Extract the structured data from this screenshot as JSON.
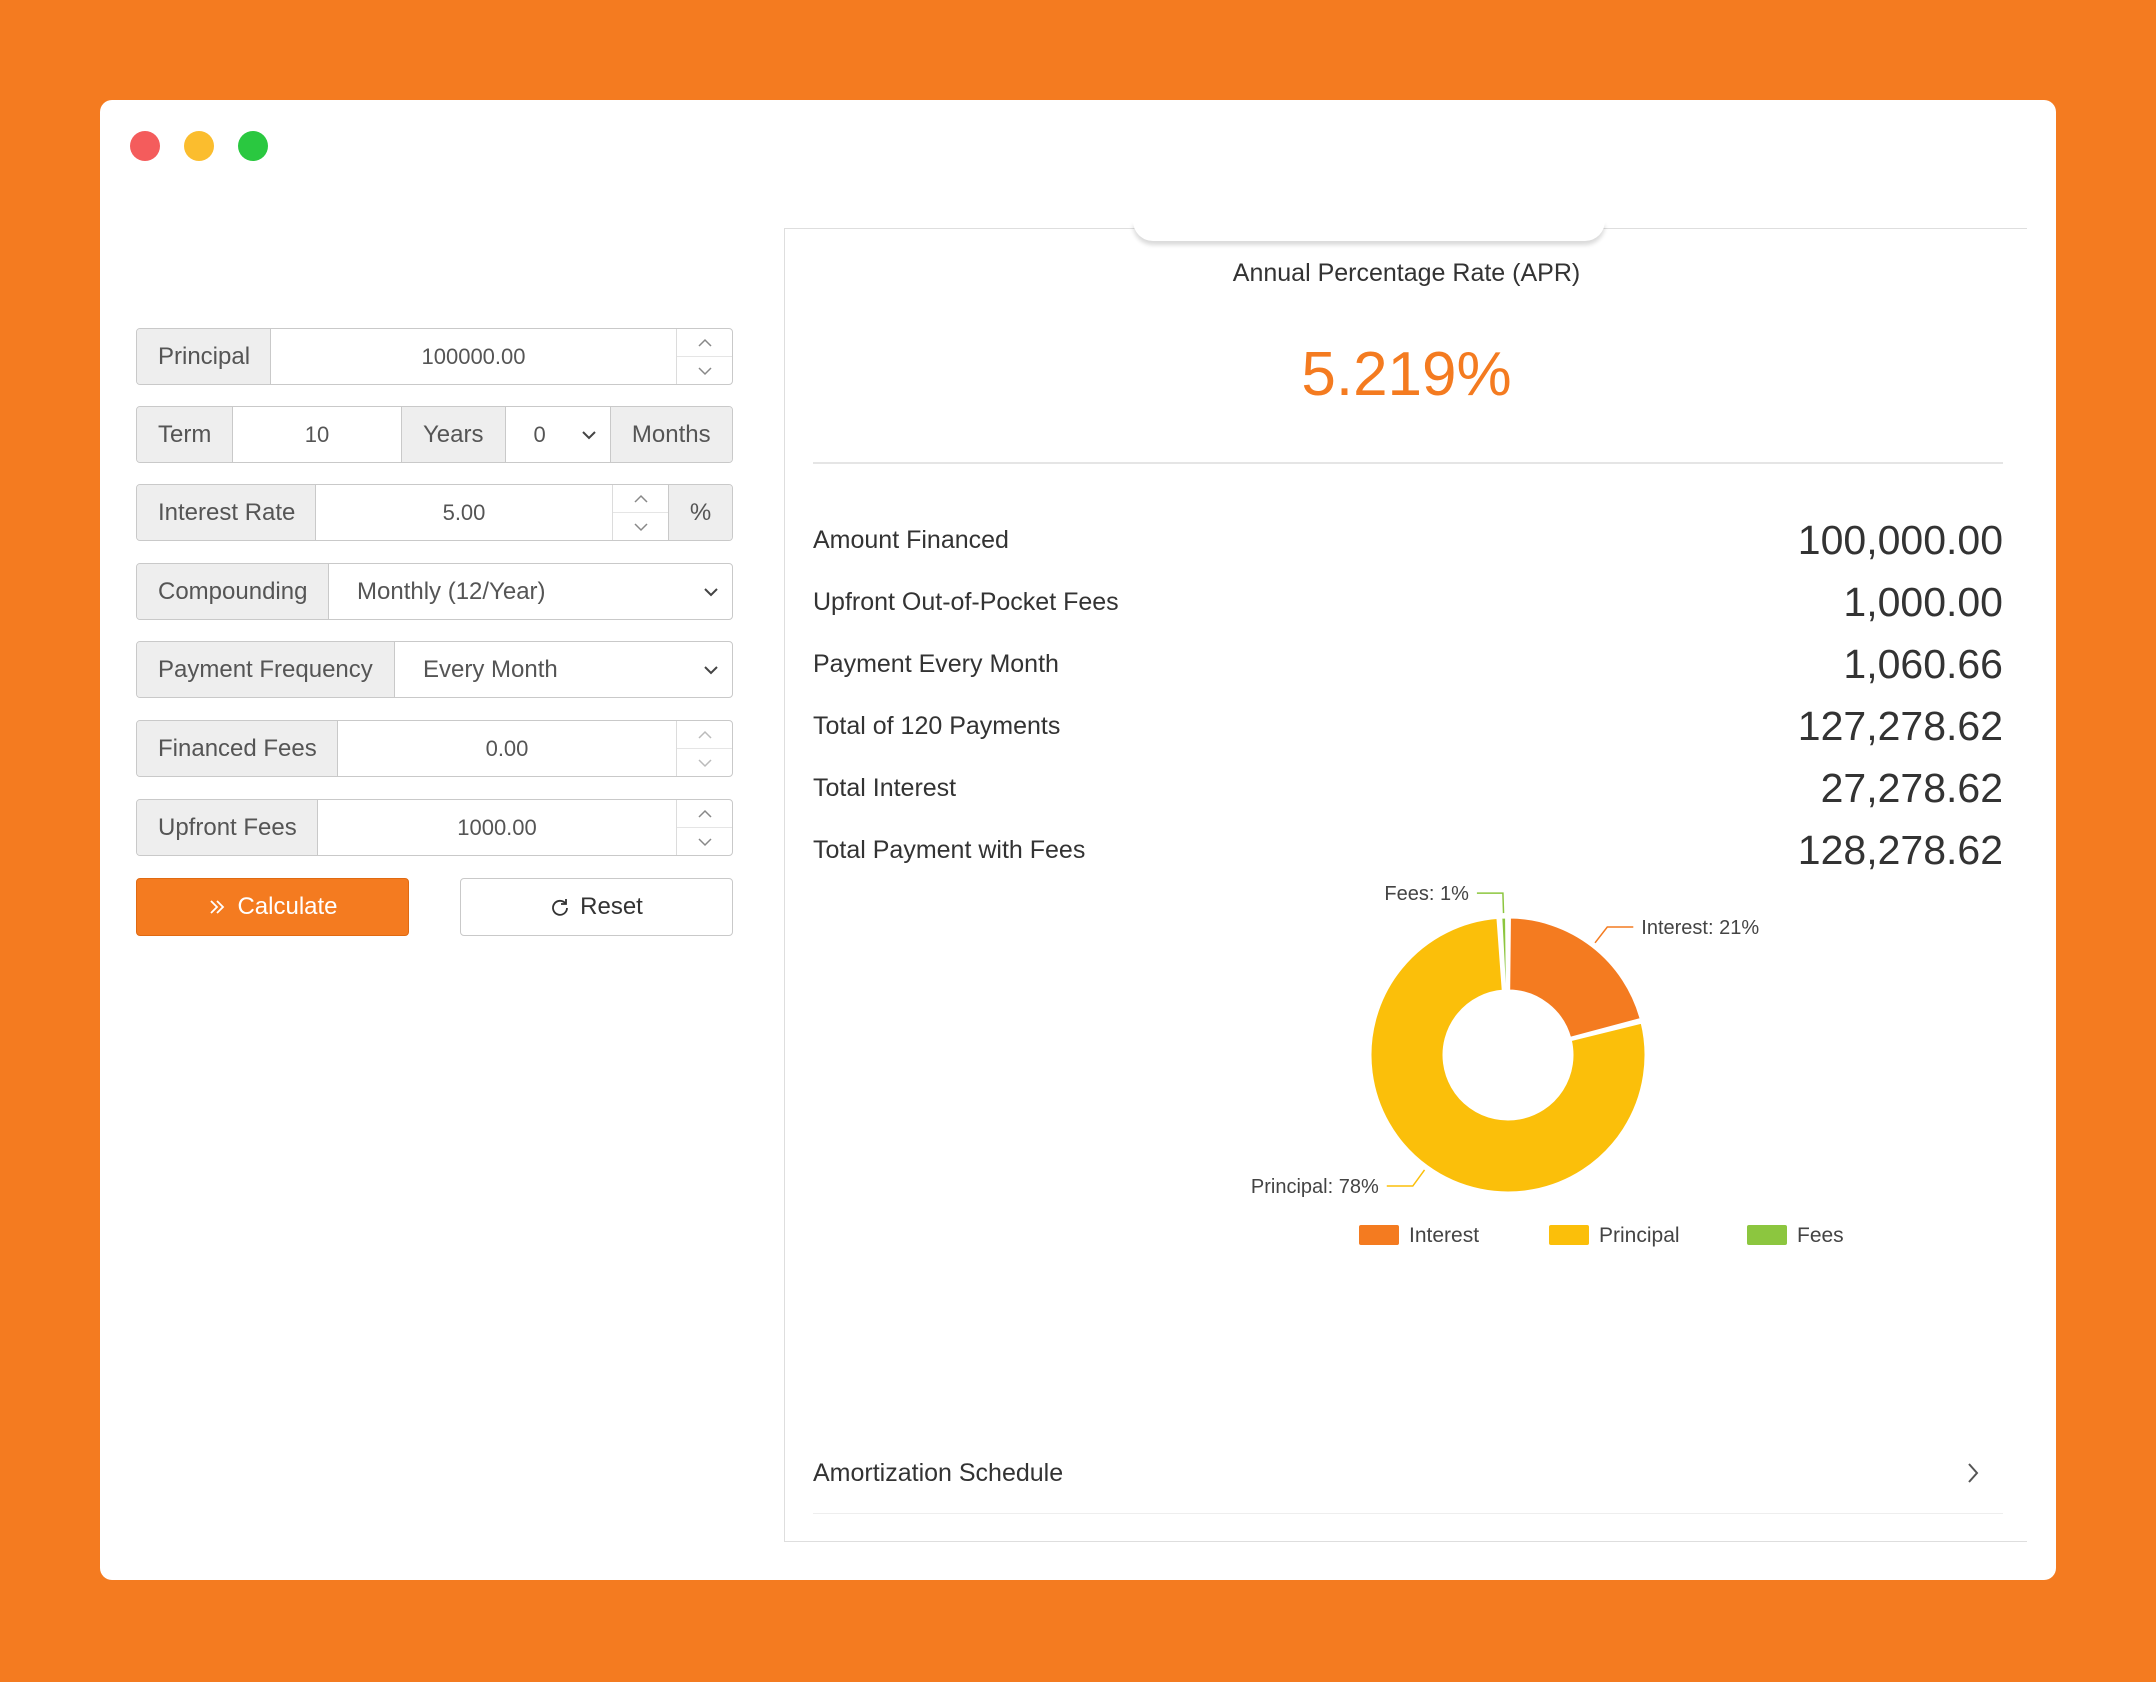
{
  "window": {
    "controls": [
      "close",
      "minimize",
      "maximize"
    ]
  },
  "form": {
    "principal": {
      "label": "Principal",
      "value": "100000.00"
    },
    "term": {
      "label": "Term",
      "years_value": "10",
      "years_label": "Years",
      "months_value": "0",
      "months_label": "Months"
    },
    "interest_rate": {
      "label": "Interest Rate",
      "value": "5.00",
      "unit": "%"
    },
    "compounding": {
      "label": "Compounding",
      "value": "Monthly (12/Year)"
    },
    "payment_frequency": {
      "label": "Payment Frequency",
      "value": "Every Month"
    },
    "financed_fees": {
      "label": "Financed Fees",
      "value": "0.00"
    },
    "upfront_fees": {
      "label": "Upfront Fees",
      "value": "1000.00"
    },
    "calculate_label": "Calculate",
    "reset_label": "Reset"
  },
  "results": {
    "apr_label": "Annual Percentage Rate (APR)",
    "apr_value": "5.219%",
    "rows": [
      {
        "label": "Amount Financed",
        "value": "100,000.00"
      },
      {
        "label": "Upfront Out-of-Pocket Fees",
        "value": "1,000.00"
      },
      {
        "label": "Payment Every Month",
        "value": "1,060.66"
      },
      {
        "label": "Total of 120 Payments",
        "value": "127,278.62"
      },
      {
        "label": "Total Interest",
        "value": "27,278.62"
      },
      {
        "label": "Total Payment with Fees",
        "value": "128,278.62"
      }
    ],
    "amortization_label": "Amortization Schedule"
  },
  "chart_data": {
    "type": "pie",
    "donut": true,
    "labels": [
      "Interest",
      "Principal",
      "Fees"
    ],
    "values": [
      21,
      78,
      1
    ],
    "slice_labels": [
      "Interest: 21%",
      "Principal: 78%",
      "Fees: 1%"
    ],
    "colors": [
      "#f47b20",
      "#fbbf0a",
      "#8cc63f"
    ],
    "legend": {
      "position": "bottom",
      "entries": [
        "Interest",
        "Principal",
        "Fees"
      ]
    }
  }
}
